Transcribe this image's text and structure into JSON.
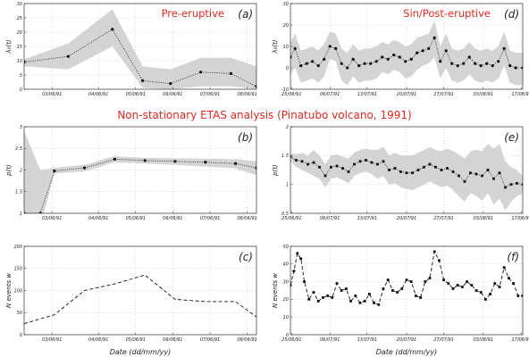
{
  "figure": {
    "center_title": "Non-stationary ETAS analysis (Pinatubo volcano, 1991)",
    "xlabel": "Date (dd/mm/yy)"
  },
  "chart_data": [
    {
      "id": "a",
      "type": "line",
      "panel_tag": "(a)",
      "title": "Pre-eruptive",
      "ylabel": "λ₀(t)",
      "ylim": [
        0,
        30
      ],
      "yticks": [
        0,
        5,
        10,
        15,
        20,
        25,
        30
      ],
      "xlim": [
        0,
        10
      ],
      "xticks": [
        {
          "x": 1.2,
          "label": "03/06/91"
        },
        {
          "x": 3.2,
          "label": "04/06/91"
        },
        {
          "x": 4.8,
          "label": "05/06/91"
        },
        {
          "x": 6.4,
          "label": "06/06/91"
        },
        {
          "x": 8.0,
          "label": "07/06/91"
        },
        {
          "x": 9.6,
          "label": "08/06/91"
        }
      ],
      "grid": true,
      "series": [
        {
          "style": "dotted",
          "marker": "dot",
          "x": [
            0,
            1.9,
            3.8,
            5.1,
            6.3,
            7.6,
            8.9,
            10
          ],
          "y": [
            9.5,
            11.5,
            21,
            3,
            2,
            6,
            5.5,
            1
          ],
          "lower": [
            8,
            7,
            15,
            0.5,
            0,
            1,
            1,
            0
          ],
          "upper": [
            10.5,
            16,
            28,
            8,
            7,
            11,
            11,
            8
          ]
        }
      ]
    },
    {
      "id": "d",
      "type": "line",
      "panel_tag": "(d)",
      "title": "Sin/Post-eruptive",
      "ylabel": "λ₀(t)",
      "ylim": [
        -10,
        30
      ],
      "yticks": [
        -10,
        0,
        10,
        20,
        30
      ],
      "xlim": [
        0,
        10
      ],
      "xticks": [
        {
          "x": 0.05,
          "label": "25/06/91"
        },
        {
          "x": 1.7,
          "label": "06/07/91"
        },
        {
          "x": 3.3,
          "label": "13/07/91"
        },
        {
          "x": 5.0,
          "label": "20/07/91"
        },
        {
          "x": 6.6,
          "label": "27/07/91"
        },
        {
          "x": 8.3,
          "label": "03/08/91"
        },
        {
          "x": 9.95,
          "label": "17/08/91"
        }
      ],
      "grid": true,
      "series": [
        {
          "style": "dotted",
          "marker": "dot",
          "x": [
            0,
            0.2,
            0.45,
            0.7,
            0.95,
            1.2,
            1.45,
            1.7,
            1.95,
            2.2,
            2.45,
            2.7,
            2.95,
            3.2,
            3.45,
            3.7,
            3.95,
            4.2,
            4.45,
            4.7,
            4.95,
            5.2,
            5.45,
            5.7,
            5.95,
            6.2,
            6.45,
            6.7,
            6.95,
            7.2,
            7.45,
            7.7,
            7.95,
            8.2,
            8.45,
            8.7,
            8.95,
            9.2,
            9.45,
            9.7,
            10
          ],
          "y": [
            5,
            9,
            1,
            2,
            3,
            1,
            4,
            10,
            9,
            2,
            0,
            4,
            1,
            2,
            2,
            3,
            5,
            4,
            6,
            5,
            3,
            4,
            7,
            8,
            9,
            14,
            3,
            8,
            2,
            1,
            2,
            5,
            2,
            1,
            2,
            1,
            3,
            9,
            1,
            0,
            0
          ],
          "lower": [
            -3,
            0,
            -7,
            -6,
            -5,
            -7,
            -4,
            4,
            3,
            -6,
            -8,
            -4,
            -7,
            -6,
            -6,
            -5,
            -2,
            -3,
            -1,
            -2,
            -5,
            -4,
            -1,
            1,
            2,
            5,
            -5,
            0,
            -6,
            -7,
            -6,
            -3,
            -6,
            -7,
            -6,
            -7,
            -5,
            1,
            -7,
            -8,
            -8
          ],
          "upper": [
            12,
            16,
            8,
            9,
            10,
            8,
            11,
            17,
            16,
            9,
            7,
            11,
            8,
            9,
            9,
            10,
            12,
            11,
            13,
            12,
            10,
            11,
            14,
            15,
            16,
            22,
            10,
            16,
            9,
            8,
            9,
            12,
            9,
            8,
            9,
            8,
            10,
            17,
            8,
            7,
            7
          ]
        }
      ]
    },
    {
      "id": "b",
      "type": "line",
      "panel_tag": "(b)",
      "ylabel": "p(t)",
      "ylim": [
        1,
        3
      ],
      "yticks": [
        1,
        1.5,
        2,
        2.5,
        3
      ],
      "xlim": [
        0,
        10
      ],
      "xticks": [
        {
          "x": 1.2,
          "label": "03/06/91"
        },
        {
          "x": 3.2,
          "label": "04/06/91"
        },
        {
          "x": 4.8,
          "label": "05/06/91"
        },
        {
          "x": 6.4,
          "label": "06/06/91"
        },
        {
          "x": 8.0,
          "label": "07/06/91"
        },
        {
          "x": 9.6,
          "label": "08/06/91"
        }
      ],
      "grid": true,
      "series": [
        {
          "style": "dotted",
          "marker": "dot",
          "x": [
            0,
            0.7,
            1.3,
            2.6,
            3.9,
            5.2,
            6.5,
            7.8,
            9.1,
            10
          ],
          "y": [
            1.0,
            1.0,
            1.98,
            2.05,
            2.25,
            2.22,
            2.2,
            2.18,
            2.15,
            2.05
          ],
          "lower": [
            0.7,
            0.7,
            1.92,
            1.97,
            2.18,
            2.15,
            2.12,
            2.08,
            2.04,
            1.88
          ],
          "upper": [
            2.9,
            2.0,
            2.05,
            2.12,
            2.32,
            2.28,
            2.27,
            2.26,
            2.25,
            2.2
          ]
        }
      ]
    },
    {
      "id": "e",
      "type": "line",
      "panel_tag": "(e)",
      "ylabel": "p(t)",
      "ylim": [
        0.5,
        2
      ],
      "yticks": [
        0.5,
        1,
        1.5,
        2
      ],
      "xlim": [
        0,
        10
      ],
      "xticks": [
        {
          "x": 0.05,
          "label": "25/06/91"
        },
        {
          "x": 1.7,
          "label": "06/07/91"
        },
        {
          "x": 3.3,
          "label": "13/07/91"
        },
        {
          "x": 5.0,
          "label": "20/07/91"
        },
        {
          "x": 6.6,
          "label": "27/07/91"
        },
        {
          "x": 8.3,
          "label": "03/08/91"
        },
        {
          "x": 9.95,
          "label": "17/08/91"
        }
      ],
      "grid": true,
      "series": [
        {
          "style": "dotted",
          "marker": "square",
          "x": [
            0,
            0.25,
            0.5,
            0.75,
            1.0,
            1.25,
            1.5,
            1.75,
            2.0,
            2.25,
            2.5,
            2.75,
            3.0,
            3.25,
            3.5,
            3.75,
            4.0,
            4.25,
            4.5,
            4.75,
            5.0,
            5.25,
            5.5,
            5.75,
            6.0,
            6.25,
            6.5,
            6.75,
            7.0,
            7.25,
            7.5,
            7.75,
            8.0,
            8.25,
            8.5,
            8.75,
            9.0,
            9.25,
            9.5,
            9.75,
            10
          ],
          "y": [
            1.48,
            1.42,
            1.4,
            1.35,
            1.38,
            1.3,
            1.15,
            1.3,
            1.32,
            1.28,
            1.22,
            1.35,
            1.4,
            1.42,
            1.38,
            1.35,
            1.4,
            1.25,
            1.28,
            1.22,
            1.2,
            1.2,
            1.25,
            1.3,
            1.35,
            1.3,
            1.25,
            1.28,
            1.22,
            1.15,
            1.05,
            1.2,
            1.18,
            1.15,
            1.25,
            1.1,
            1.2,
            0.95,
            1.0,
            1.02,
            1.0
          ],
          "lower": [
            1.4,
            1.3,
            1.25,
            1.2,
            1.15,
            1.1,
            0.95,
            1.1,
            1.12,
            1.08,
            1.02,
            1.15,
            1.2,
            1.22,
            1.18,
            1.1,
            1.15,
            1.0,
            1.02,
            0.95,
            0.92,
            0.9,
            0.95,
            1.0,
            1.05,
            1.0,
            0.95,
            0.98,
            0.9,
            0.8,
            0.7,
            0.85,
            0.8,
            0.72,
            0.85,
            0.65,
            0.75,
            0.55,
            0.7,
            0.8,
            0.85
          ],
          "upper": [
            1.55,
            1.52,
            1.55,
            1.5,
            1.6,
            1.5,
            1.35,
            1.5,
            1.52,
            1.48,
            1.45,
            1.55,
            1.6,
            1.62,
            1.6,
            1.6,
            1.65,
            1.5,
            1.55,
            1.5,
            1.5,
            1.5,
            1.55,
            1.6,
            1.65,
            1.6,
            1.58,
            1.62,
            1.58,
            1.52,
            1.45,
            1.58,
            1.6,
            1.58,
            1.7,
            1.62,
            1.7,
            1.4,
            1.3,
            1.25,
            1.15
          ]
        }
      ]
    },
    {
      "id": "c",
      "type": "line",
      "panel_tag": "(c)",
      "ylabel": "N events w",
      "ylim": [
        0,
        200
      ],
      "yticks": [
        0,
        50,
        100,
        150,
        200
      ],
      "xlim": [
        0,
        10
      ],
      "xticks": [
        {
          "x": 1.2,
          "label": "03/06/91"
        },
        {
          "x": 3.2,
          "label": "04/06/91"
        },
        {
          "x": 4.8,
          "label": "05/06/91"
        },
        {
          "x": 6.4,
          "label": "06/06/91"
        },
        {
          "x": 8.0,
          "label": "07/06/91"
        },
        {
          "x": 9.6,
          "label": "08/06/91"
        }
      ],
      "grid": true,
      "series": [
        {
          "style": "dashed",
          "marker": "none",
          "x": [
            0,
            1.3,
            2.6,
            3.9,
            5.2,
            6.5,
            7.8,
            9.1,
            10
          ],
          "y": [
            25,
            45,
            100,
            115,
            135,
            80,
            75,
            75,
            40
          ]
        }
      ]
    },
    {
      "id": "f",
      "type": "line",
      "panel_tag": "(f)",
      "ylabel": "N events w",
      "ylim": [
        0,
        50
      ],
      "yticks": [
        0,
        10,
        20,
        30,
        40,
        50
      ],
      "xlim": [
        0,
        10
      ],
      "xticks": [
        {
          "x": 0.05,
          "label": "25/06/91"
        },
        {
          "x": 1.7,
          "label": "06/07/91"
        },
        {
          "x": 3.3,
          "label": "13/07/91"
        },
        {
          "x": 5.0,
          "label": "20/07/91"
        },
        {
          "x": 6.6,
          "label": "27/07/91"
        },
        {
          "x": 8.3,
          "label": "03/08/91"
        },
        {
          "x": 9.95,
          "label": "17/08/91"
        }
      ],
      "grid": true,
      "series": [
        {
          "style": "dashed",
          "marker": "square",
          "x": [
            0,
            0.15,
            0.3,
            0.45,
            0.6,
            0.8,
            1.0,
            1.2,
            1.4,
            1.6,
            1.8,
            2.0,
            2.2,
            2.4,
            2.6,
            2.8,
            3.0,
            3.2,
            3.4,
            3.6,
            3.8,
            4.0,
            4.2,
            4.4,
            4.6,
            4.8,
            5.0,
            5.2,
            5.4,
            5.6,
            5.8,
            6.0,
            6.2,
            6.4,
            6.6,
            6.8,
            7.0,
            7.2,
            7.4,
            7.6,
            7.8,
            8.0,
            8.2,
            8.4,
            8.6,
            8.8,
            9.0,
            9.2,
            9.4,
            9.6,
            9.8,
            10
          ],
          "y": [
            28,
            36,
            46,
            43,
            30,
            20,
            24,
            19,
            21,
            22,
            21,
            29,
            25,
            26,
            19,
            22,
            18,
            19,
            23,
            18,
            17,
            26,
            31,
            25,
            24,
            26,
            31,
            30,
            22,
            21,
            30,
            32,
            47,
            42,
            31,
            29,
            26,
            28,
            27,
            30,
            28,
            25,
            24,
            20,
            23,
            29,
            27,
            38,
            32,
            29,
            22,
            22
          ]
        }
      ]
    }
  ]
}
